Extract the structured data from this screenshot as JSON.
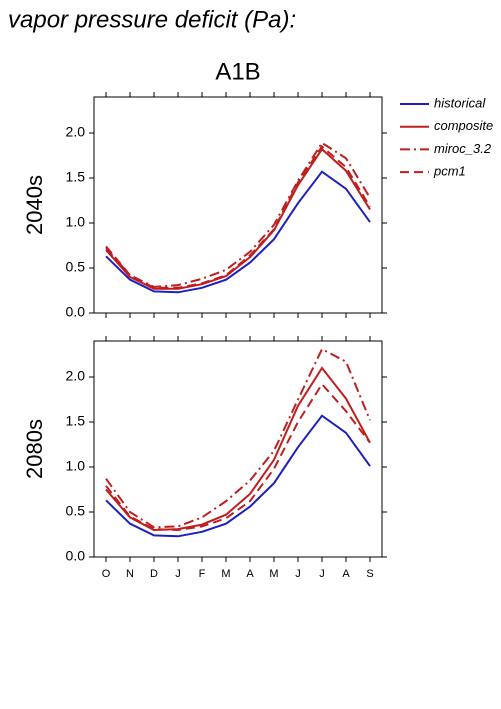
{
  "title": "vapor pressure deficit (Pa):",
  "scenario": "A1B",
  "chart_data": [
    {
      "type": "line",
      "ylabel": "2040s",
      "ylim": [
        0,
        2.4
      ],
      "yticks": [
        {
          "value": 0,
          "label": "0.0"
        },
        0.5,
        {
          "value": 1,
          "label": "1.0"
        },
        1.5,
        {
          "value": 2,
          "label": "2.0"
        }
      ],
      "series": [
        {
          "name": "historical",
          "color": "#1f1fbf",
          "dash": "solid",
          "values": [
            0.63,
            0.37,
            0.24,
            0.23,
            0.28,
            0.37,
            0.56,
            0.82,
            1.22,
            1.57,
            1.38,
            1.01
          ]
        },
        {
          "name": "composite",
          "color": "#bf1f1f",
          "dash": "solid",
          "values": [
            0.7,
            0.4,
            0.27,
            0.27,
            0.32,
            0.41,
            0.62,
            0.92,
            1.42,
            1.82,
            1.58,
            1.15
          ]
        },
        {
          "name": "miroc_3.2",
          "color": "#bf1f1f",
          "dash": "dashdot",
          "values": [
            0.72,
            0.42,
            0.29,
            0.31,
            0.38,
            0.48,
            0.68,
            0.98,
            1.47,
            1.89,
            1.72,
            1.28
          ]
        },
        {
          "name": "pcm1",
          "color": "#bf1f1f",
          "dash": "dashed",
          "values": [
            0.74,
            0.42,
            0.28,
            0.28,
            0.33,
            0.42,
            0.64,
            0.93,
            1.45,
            1.85,
            1.62,
            1.18
          ]
        }
      ]
    },
    {
      "type": "line",
      "ylabel": "2080s",
      "ylim": [
        0,
        2.4
      ],
      "categories": [
        "O",
        "N",
        "D",
        "J",
        "F",
        "M",
        "A",
        "M",
        "J",
        "J",
        "A",
        "S"
      ],
      "yticks": [
        {
          "value": 0,
          "label": "0.0"
        },
        0.5,
        {
          "value": 1,
          "label": "1.0"
        },
        1.5,
        {
          "value": 2,
          "label": "2.0"
        }
      ],
      "series": [
        {
          "color": "#1f1fbf",
          "dash": "solid",
          "values": [
            0.63,
            0.37,
            0.24,
            0.23,
            0.28,
            0.37,
            0.56,
            0.82,
            1.22,
            1.57,
            1.38,
            1.01
          ]
        },
        {
          "color": "#bf1f1f",
          "dash": "solid",
          "values": [
            0.75,
            0.44,
            0.3,
            0.31,
            0.36,
            0.47,
            0.7,
            1.08,
            1.68,
            2.1,
            1.76,
            1.27
          ]
        },
        {
          "color": "#bf1f1f",
          "dash": "dashdot",
          "values": [
            0.87,
            0.5,
            0.33,
            0.34,
            0.44,
            0.62,
            0.85,
            1.18,
            1.75,
            2.31,
            2.17,
            1.52
          ]
        },
        {
          "color": "#bf1f1f",
          "dash": "dashed",
          "values": [
            0.79,
            0.45,
            0.31,
            0.3,
            0.34,
            0.43,
            0.62,
            0.98,
            1.5,
            1.92,
            1.62,
            1.27
          ]
        }
      ]
    }
  ]
}
